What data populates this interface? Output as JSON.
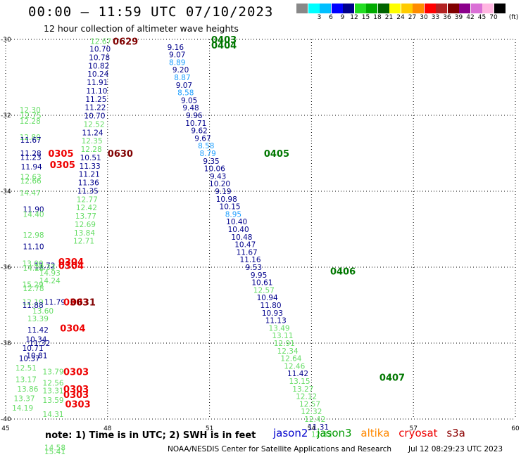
{
  "title": "00:00 – 11:59 UTC 07/10/2023",
  "subtitle": "12 hour collection of altimeter wave heights",
  "scale": {
    "unit": "(ft)",
    "swatches": [
      {
        "color": "#888888",
        "label": ""
      },
      {
        "color": "#00ffff",
        "label": "3"
      },
      {
        "color": "#00bfff",
        "label": "6"
      },
      {
        "color": "#0000ff",
        "label": "9"
      },
      {
        "color": "#00008b",
        "label": "12"
      },
      {
        "color": "#22dd22",
        "label": "15"
      },
      {
        "color": "#00aa00",
        "label": "18"
      },
      {
        "color": "#006400",
        "label": "21"
      },
      {
        "color": "#ffff00",
        "label": "24"
      },
      {
        "color": "#ffcc00",
        "label": "27"
      },
      {
        "color": "#ff8c00",
        "label": "30"
      },
      {
        "color": "#ff0000",
        "label": "33"
      },
      {
        "color": "#b22222",
        "label": "36"
      },
      {
        "color": "#800000",
        "label": "39"
      },
      {
        "color": "#8b008b",
        "label": "42"
      },
      {
        "color": "#da70d6",
        "label": "45"
      },
      {
        "color": "#ffb6e1",
        "label": "70"
      },
      {
        "color": "#000000",
        "label": ""
      }
    ]
  },
  "chart_data": {
    "type": "scatter",
    "xlim": [
      45,
      60
    ],
    "ylim": [
      -40,
      -30
    ],
    "xticks": [
      45,
      48,
      51,
      54,
      57,
      60
    ],
    "yticks": [
      -30,
      -32,
      -34,
      -36,
      -38,
      -40
    ],
    "xtick_labels": [
      "45",
      "48",
      "51",
      "54",
      "57",
      "60"
    ],
    "ytick_labels": [
      "-30",
      "-32",
      "-34",
      "-36",
      "-38",
      "-40"
    ],
    "grid": true,
    "series": [
      {
        "name": "jason2",
        "color": "#0000cc"
      },
      {
        "name": "jason3",
        "color": "#009900"
      },
      {
        "name": "altika",
        "color": "#ff8800"
      },
      {
        "name": "cryosat",
        "color": "#ee0000"
      },
      {
        "name": "s3a",
        "color": "#8b0000"
      }
    ],
    "points": [
      {
        "x": 47.8,
        "y": -30.05,
        "v": "12.67",
        "c": "#66dd66"
      },
      {
        "x": 47.78,
        "y": -30.25,
        "v": "10.70",
        "c": "#00008b"
      },
      {
        "x": 47.76,
        "y": -30.47,
        "v": "10.78",
        "c": "#00008b"
      },
      {
        "x": 47.74,
        "y": -30.69,
        "v": "10.82",
        "c": "#00008b"
      },
      {
        "x": 47.72,
        "y": -30.91,
        "v": "10.24",
        "c": "#00008b"
      },
      {
        "x": 47.7,
        "y": -31.13,
        "v": "11.91",
        "c": "#00008b"
      },
      {
        "x": 47.68,
        "y": -31.35,
        "v": "11.10",
        "c": "#00008b"
      },
      {
        "x": 47.66,
        "y": -31.57,
        "v": "11.25",
        "c": "#00008b"
      },
      {
        "x": 47.64,
        "y": -31.79,
        "v": "11.22",
        "c": "#00008b"
      },
      {
        "x": 47.62,
        "y": -32.01,
        "v": "10.70",
        "c": "#00008b"
      },
      {
        "x": 47.6,
        "y": -32.23,
        "v": "12.52",
        "c": "#66dd66"
      },
      {
        "x": 47.56,
        "y": -32.45,
        "v": "11.24",
        "c": "#00008b"
      },
      {
        "x": 47.54,
        "y": -32.67,
        "v": "12.35",
        "c": "#66dd66"
      },
      {
        "x": 47.52,
        "y": -32.89,
        "v": "12.28",
        "c": "#66dd66"
      },
      {
        "x": 47.5,
        "y": -33.11,
        "v": "10.51",
        "c": "#00008b"
      },
      {
        "x": 47.48,
        "y": -33.33,
        "v": "11.33",
        "c": "#00008b"
      },
      {
        "x": 47.46,
        "y": -33.55,
        "v": "11.21",
        "c": "#00008b"
      },
      {
        "x": 47.44,
        "y": -33.77,
        "v": "11.36",
        "c": "#00008b"
      },
      {
        "x": 47.42,
        "y": -33.99,
        "v": "11.35",
        "c": "#00008b"
      },
      {
        "x": 47.4,
        "y": -34.21,
        "v": "12.77",
        "c": "#66dd66"
      },
      {
        "x": 47.38,
        "y": -34.43,
        "v": "12.42",
        "c": "#66dd66"
      },
      {
        "x": 47.36,
        "y": -34.65,
        "v": "13.77",
        "c": "#66dd66"
      },
      {
        "x": 47.34,
        "y": -34.87,
        "v": "12.69",
        "c": "#66dd66"
      },
      {
        "x": 47.32,
        "y": -35.09,
        "v": "13.84",
        "c": "#66dd66"
      },
      {
        "x": 47.3,
        "y": -35.31,
        "v": "12.71",
        "c": "#66dd66"
      },
      {
        "x": 45.72,
        "y": -31.85,
        "v": "12.30",
        "c": "#66dd66"
      },
      {
        "x": 45.74,
        "y": -32.0,
        "v": "12.75",
        "c": "#66dd66"
      },
      {
        "x": 45.72,
        "y": -32.15,
        "v": "12.28",
        "c": "#66dd66"
      },
      {
        "x": 45.72,
        "y": -32.57,
        "v": "12.80",
        "c": "#66dd66"
      },
      {
        "x": 45.74,
        "y": -32.65,
        "v": "11.67",
        "c": "#00008b"
      },
      {
        "x": 45.74,
        "y": -33.0,
        "v": "11.28",
        "c": "#00008b"
      },
      {
        "x": 45.74,
        "y": -33.1,
        "v": "11.23",
        "c": "#00008b"
      },
      {
        "x": 45.76,
        "y": -33.35,
        "v": "11.94",
        "c": "#00008b"
      },
      {
        "x": 45.74,
        "y": -33.62,
        "v": "12.63",
        "c": "#66dd66"
      },
      {
        "x": 45.74,
        "y": -33.72,
        "v": "12.66",
        "c": "#66dd66"
      },
      {
        "x": 45.72,
        "y": -34.04,
        "v": "14.47",
        "c": "#66dd66"
      },
      {
        "x": 45.82,
        "y": -34.47,
        "v": "11.90",
        "c": "#00008b"
      },
      {
        "x": 45.82,
        "y": -34.6,
        "v": "14.40",
        "c": "#66dd66"
      },
      {
        "x": 45.82,
        "y": -35.15,
        "v": "12.98",
        "c": "#66dd66"
      },
      {
        "x": 45.82,
        "y": -35.45,
        "v": "11.10",
        "c": "#00008b"
      },
      {
        "x": 45.8,
        "y": -35.9,
        "v": "13.00",
        "c": "#66dd66"
      },
      {
        "x": 45.82,
        "y": -36.02,
        "v": "14.28",
        "c": "#66dd66"
      },
      {
        "x": 45.8,
        "y": -36.45,
        "v": "15.29",
        "c": "#66dd66"
      },
      {
        "x": 45.82,
        "y": -36.56,
        "v": "12.78",
        "c": "#66dd66"
      },
      {
        "x": 46.3,
        "y": -36.15,
        "v": "14.93",
        "c": "#66dd66"
      },
      {
        "x": 46.3,
        "y": -36.35,
        "v": "14.24",
        "c": "#66dd66"
      },
      {
        "x": 45.8,
        "y": -36.92,
        "v": "12.19",
        "c": "#66dd66"
      },
      {
        "x": 45.8,
        "y": -37.0,
        "v": "11.88",
        "c": "#00008b"
      },
      {
        "x": 46.1,
        "y": -37.15,
        "v": "13.60",
        "c": "#66dd66"
      },
      {
        "x": 45.95,
        "y": -37.35,
        "v": "13.39",
        "c": "#66dd66"
      },
      {
        "x": 45.95,
        "y": -37.65,
        "v": "11.42",
        "c": "#00008b"
      },
      {
        "x": 45.9,
        "y": -37.9,
        "v": "10.34",
        "c": "#00008b"
      },
      {
        "x": 46.0,
        "y": -38.0,
        "v": "11.32",
        "c": "#00008b"
      },
      {
        "x": 45.8,
        "y": -38.13,
        "v": "10.71",
        "c": "#00008b"
      },
      {
        "x": 45.92,
        "y": -38.32,
        "v": "10.81",
        "c": "#00008b"
      },
      {
        "x": 45.7,
        "y": -38.4,
        "v": "10.37",
        "c": "#00008b"
      },
      {
        "x": 45.6,
        "y": -38.65,
        "v": "12.51",
        "c": "#66dd66"
      },
      {
        "x": 46.4,
        "y": -38.75,
        "v": "13.79",
        "c": "#66dd66"
      },
      {
        "x": 45.6,
        "y": -38.95,
        "v": "13.17",
        "c": "#66dd66"
      },
      {
        "x": 46.4,
        "y": -39.05,
        "v": "12.56",
        "c": "#66dd66"
      },
      {
        "x": 45.65,
        "y": -39.2,
        "v": "13.86",
        "c": "#66dd66"
      },
      {
        "x": 46.4,
        "y": -39.25,
        "v": "13.31",
        "c": "#66dd66"
      },
      {
        "x": 45.55,
        "y": -39.45,
        "v": "13.37",
        "c": "#66dd66"
      },
      {
        "x": 46.4,
        "y": -39.5,
        "v": "13.59",
        "c": "#66dd66"
      },
      {
        "x": 45.5,
        "y": -39.7,
        "v": "14.19",
        "c": "#66dd66"
      },
      {
        "x": 46.4,
        "y": -39.87,
        "v": "14.31",
        "c": "#66dd66"
      },
      {
        "x": 46.45,
        "y": -40.75,
        "v": "14.58",
        "c": "#66dd66"
      },
      {
        "x": 46.45,
        "y": -40.85,
        "v": "15.41",
        "c": "#66dd66"
      },
      {
        "x": 46.15,
        "y": -35.95,
        "v": "11.72",
        "c": "#00008b"
      },
      {
        "x": 46.15,
        "y": -36.0,
        "v": "12.33",
        "c": "#66dd66"
      },
      {
        "x": 46.45,
        "y": -36.92,
        "v": "11.79",
        "c": "#00008b"
      },
      {
        "x": 49.85,
        "y": -29.98,
        "v": "8.49",
        "c": "#1e9fff"
      },
      {
        "x": 50.0,
        "y": -30.2,
        "v": "9.16",
        "c": "#00008b"
      },
      {
        "x": 50.05,
        "y": -30.4,
        "v": "9.07",
        "c": "#00008b"
      },
      {
        "x": 50.05,
        "y": -30.6,
        "v": "8.89",
        "c": "#1e9fff"
      },
      {
        "x": 50.15,
        "y": -30.8,
        "v": "9.20",
        "c": "#00008b"
      },
      {
        "x": 50.2,
        "y": -31.0,
        "v": "8.87",
        "c": "#1e9fff"
      },
      {
        "x": 50.25,
        "y": -31.2,
        "v": "9.07",
        "c": "#00008b"
      },
      {
        "x": 50.3,
        "y": -31.4,
        "v": "8.58",
        "c": "#1e9fff"
      },
      {
        "x": 50.4,
        "y": -31.6,
        "v": "9.05",
        "c": "#00008b"
      },
      {
        "x": 50.45,
        "y": -31.8,
        "v": "9.48",
        "c": "#00008b"
      },
      {
        "x": 50.55,
        "y": -32.0,
        "v": "9.96",
        "c": "#00008b"
      },
      {
        "x": 50.6,
        "y": -32.2,
        "v": "10.71",
        "c": "#00008b"
      },
      {
        "x": 50.7,
        "y": -32.4,
        "v": "9.62",
        "c": "#00008b"
      },
      {
        "x": 50.8,
        "y": -32.6,
        "v": "9.67",
        "c": "#00008b"
      },
      {
        "x": 50.9,
        "y": -32.8,
        "v": "8.58",
        "c": "#1e9fff"
      },
      {
        "x": 50.95,
        "y": -33.0,
        "v": "8.79",
        "c": "#1e9fff"
      },
      {
        "x": 51.05,
        "y": -33.2,
        "v": "9.35",
        "c": "#00008b"
      },
      {
        "x": 51.15,
        "y": -33.4,
        "v": "10.06",
        "c": "#00008b"
      },
      {
        "x": 51.25,
        "y": -33.6,
        "v": "9.43",
        "c": "#00008b"
      },
      {
        "x": 51.3,
        "y": -33.8,
        "v": "10.20",
        "c": "#00008b"
      },
      {
        "x": 51.4,
        "y": -34.0,
        "v": "9.19",
        "c": "#00008b"
      },
      {
        "x": 51.5,
        "y": -34.2,
        "v": "10.98",
        "c": "#00008b"
      },
      {
        "x": 51.6,
        "y": -34.4,
        "v": "10.15",
        "c": "#00008b"
      },
      {
        "x": 51.7,
        "y": -34.6,
        "v": "8.95",
        "c": "#1e9fff"
      },
      {
        "x": 51.8,
        "y": -34.8,
        "v": "10.40",
        "c": "#00008b"
      },
      {
        "x": 51.85,
        "y": -35.0,
        "v": "10.40",
        "c": "#00008b"
      },
      {
        "x": 51.95,
        "y": -35.2,
        "v": "10.48",
        "c": "#00008b"
      },
      {
        "x": 52.05,
        "y": -35.4,
        "v": "10.47",
        "c": "#00008b"
      },
      {
        "x": 52.1,
        "y": -35.6,
        "v": "11.67",
        "c": "#00008b"
      },
      {
        "x": 52.2,
        "y": -35.8,
        "v": "11.16",
        "c": "#00008b"
      },
      {
        "x": 52.3,
        "y": -36.0,
        "v": "9.53",
        "c": "#00008b"
      },
      {
        "x": 52.45,
        "y": -36.2,
        "v": "9.95",
        "c": "#00008b"
      },
      {
        "x": 52.55,
        "y": -36.4,
        "v": "10.61",
        "c": "#00008b"
      },
      {
        "x": 52.6,
        "y": -36.6,
        "v": "12.57",
        "c": "#66dd66"
      },
      {
        "x": 52.7,
        "y": -36.8,
        "v": "10.94",
        "c": "#00008b"
      },
      {
        "x": 52.8,
        "y": -37.0,
        "v": "11.80",
        "c": "#00008b"
      },
      {
        "x": 52.85,
        "y": -37.2,
        "v": "10.93",
        "c": "#00008b"
      },
      {
        "x": 52.95,
        "y": -37.4,
        "v": "11.13",
        "c": "#00008b"
      },
      {
        "x": 53.05,
        "y": -37.6,
        "v": "13.49",
        "c": "#66dd66"
      },
      {
        "x": 53.15,
        "y": -37.8,
        "v": "13.11",
        "c": "#66dd66"
      },
      {
        "x": 53.2,
        "y": -38.0,
        "v": "12.91",
        "c": "#66dd66"
      },
      {
        "x": 53.3,
        "y": -38.2,
        "v": "12.34",
        "c": "#66dd66"
      },
      {
        "x": 53.4,
        "y": -38.4,
        "v": "12.64",
        "c": "#66dd66"
      },
      {
        "x": 53.5,
        "y": -38.6,
        "v": "12.46",
        "c": "#66dd66"
      },
      {
        "x": 53.6,
        "y": -38.8,
        "v": "11.42",
        "c": "#00008b"
      },
      {
        "x": 53.65,
        "y": -39.0,
        "v": "13.15",
        "c": "#66dd66"
      },
      {
        "x": 53.75,
        "y": -39.2,
        "v": "13.27",
        "c": "#66dd66"
      },
      {
        "x": 53.85,
        "y": -39.4,
        "v": "12.12",
        "c": "#66dd66"
      },
      {
        "x": 53.95,
        "y": -39.6,
        "v": "12.57",
        "c": "#66dd66"
      },
      {
        "x": 54.0,
        "y": -39.8,
        "v": "12.32",
        "c": "#66dd66"
      },
      {
        "x": 54.1,
        "y": -40.0,
        "v": "12.42",
        "c": "#66dd66"
      },
      {
        "x": 54.2,
        "y": -40.2,
        "v": "11.31",
        "c": "#00008b"
      },
      {
        "x": 54.3,
        "y": -40.4,
        "v": "12.82",
        "c": "#66dd66"
      }
    ],
    "time_labels": [
      {
        "x": 48.15,
        "y": -30.05,
        "t": "0629",
        "c": "#800000"
      },
      {
        "x": 51.05,
        "y": -30.0,
        "t": "0403",
        "c": "#007700"
      },
      {
        "x": 51.05,
        "y": -30.15,
        "t": "0404",
        "c": "#007700"
      },
      {
        "x": 48.0,
        "y": -33.0,
        "t": "0630",
        "c": "#800000"
      },
      {
        "x": 46.25,
        "y": -33.0,
        "t": "0305",
        "c": "#ee0000"
      },
      {
        "x": 46.3,
        "y": -33.3,
        "t": "0305",
        "c": "#ee0000"
      },
      {
        "x": 52.6,
        "y": -33.0,
        "t": "0405",
        "c": "#007700"
      },
      {
        "x": 46.55,
        "y": -35.85,
        "t": "0304",
        "c": "#ee0000"
      },
      {
        "x": 46.55,
        "y": -35.95,
        "t": "0304",
        "c": "#ee0000"
      },
      {
        "x": 46.7,
        "y": -36.92,
        "t": "0303",
        "c": "#ee0000"
      },
      {
        "x": 46.9,
        "y": -36.92,
        "t": "0631",
        "c": "#800000"
      },
      {
        "x": 46.6,
        "y": -37.6,
        "t": "0304",
        "c": "#ee0000"
      },
      {
        "x": 54.55,
        "y": -36.1,
        "t": "0406",
        "c": "#007700"
      },
      {
        "x": 46.7,
        "y": -38.75,
        "t": "0303",
        "c": "#ee0000"
      },
      {
        "x": 46.7,
        "y": -39.2,
        "t": "0303",
        "c": "#ee0000"
      },
      {
        "x": 46.7,
        "y": -39.35,
        "t": "0303",
        "c": "#ee0000"
      },
      {
        "x": 46.75,
        "y": -39.6,
        "t": "0303",
        "c": "#ee0000"
      },
      {
        "x": 56.0,
        "y": -38.9,
        "t": "0407",
        "c": "#007700"
      }
    ]
  },
  "footer": {
    "note": "note: 1) Time is in UTC; 2) SWH is in feet",
    "satellites": [
      {
        "name": "jason2",
        "color": "#0000cc"
      },
      {
        "name": "jason3",
        "color": "#009900"
      },
      {
        "name": "altika",
        "color": "#ff8800"
      },
      {
        "name": "cryosat",
        "color": "#ee0000"
      },
      {
        "name": "s3a",
        "color": "#8b0000"
      }
    ],
    "credit": "NOAA/NESDIS Center for Satellite Applications and Research",
    "stamp": "Jul 12 08:29:23 UTC 2023"
  }
}
